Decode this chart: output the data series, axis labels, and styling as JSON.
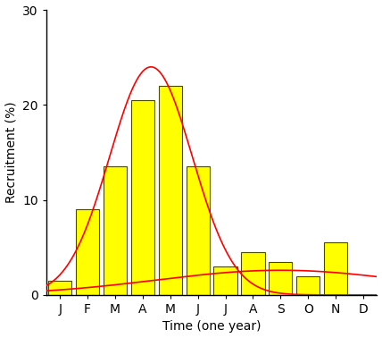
{
  "months": [
    "J",
    "F",
    "M",
    "A",
    "M",
    "J",
    "J",
    "A",
    "S",
    "O",
    "N",
    "D"
  ],
  "bar_values": [
    1.5,
    9.0,
    13.5,
    20.5,
    22.0,
    13.5,
    3.0,
    4.5,
    3.5,
    2.0,
    5.5,
    0.0
  ],
  "bar_color": "#FFFF00",
  "bar_edge_color": "#4a4a00",
  "bar_linewidth": 0.8,
  "ylim": [
    0,
    30
  ],
  "yticks": [
    0,
    10,
    20,
    30
  ],
  "ylabel": "Recruitment (%)",
  "xlabel": "Time (one year)",
  "curve_color": "#FF0000",
  "curve_linewidth": 1.2,
  "background_color": "#FFFFFF",
  "curve1_mu": 3.3,
  "curve1_sigma": 1.5,
  "curve1_amp": 24.0,
  "curve2_mu": 8.0,
  "curve2_sigma": 4.5,
  "curve2_amp": 2.6
}
